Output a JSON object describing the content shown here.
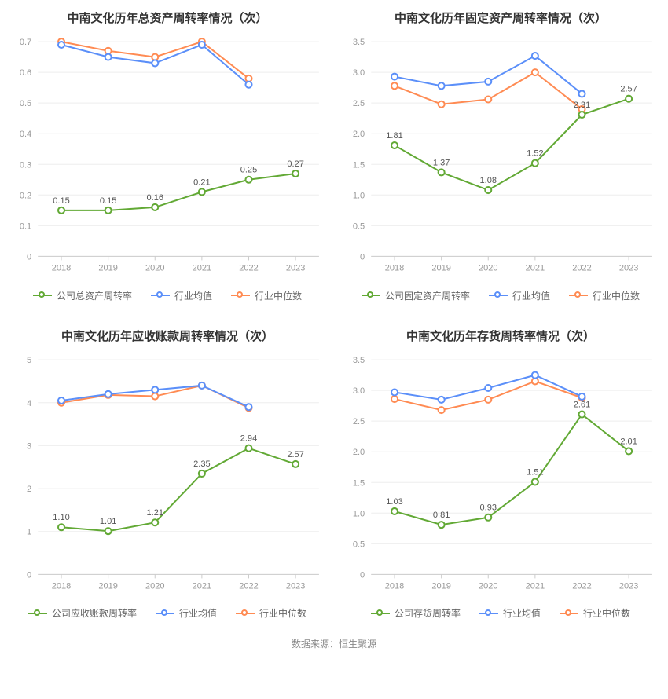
{
  "colors": {
    "company": "#62a935",
    "avg": "#5b8ff9",
    "median": "#ff8b53",
    "grid": "#eeeeee",
    "axis": "#cccccc",
    "axis_text": "#999999",
    "label_text": "#555555",
    "title_text": "#333333",
    "legend_text": "#666666",
    "bg": "#ffffff"
  },
  "x_categories": [
    "2018",
    "2019",
    "2020",
    "2021",
    "2022",
    "2023"
  ],
  "footer_text": "数据来源：恒生聚源",
  "charts": [
    {
      "id": "total_asset",
      "title": "中南文化历年总资产周转率情况（次）",
      "ylim": [
        0,
        0.7
      ],
      "ytick_step": 0.1,
      "y_decimals": 1,
      "legend": [
        "公司总资产周转率",
        "行业均值",
        "行业中位数"
      ],
      "series": {
        "company": {
          "values": [
            0.15,
            0.15,
            0.16,
            0.21,
            0.25,
            0.27
          ],
          "show_labels": true
        },
        "avg": {
          "values": [
            0.69,
            0.65,
            0.63,
            0.69,
            0.56,
            null
          ],
          "show_labels": false
        },
        "median": {
          "values": [
            0.7,
            0.67,
            0.65,
            0.7,
            0.58,
            null
          ],
          "show_labels": false
        }
      }
    },
    {
      "id": "fixed_asset",
      "title": "中南文化历年固定资产周转率情况（次）",
      "ylim": [
        0,
        3.5
      ],
      "ytick_step": 0.5,
      "y_decimals": 1,
      "legend": [
        "公司固定资产周转率",
        "行业均值",
        "行业中位数"
      ],
      "series": {
        "company": {
          "values": [
            1.81,
            1.37,
            1.08,
            1.52,
            2.31,
            2.57
          ],
          "show_labels": true
        },
        "avg": {
          "values": [
            2.93,
            2.78,
            2.85,
            3.27,
            2.65,
            null
          ],
          "show_labels": false
        },
        "median": {
          "values": [
            2.78,
            2.48,
            2.56,
            3.0,
            2.4,
            null
          ],
          "show_labels": false
        }
      }
    },
    {
      "id": "receivables",
      "title": "中南文化历年应收账款周转率情况（次）",
      "ylim": [
        0,
        5
      ],
      "ytick_step": 1,
      "y_decimals": 0,
      "legend": [
        "公司应收账款周转率",
        "行业均值",
        "行业中位数"
      ],
      "series": {
        "company": {
          "values": [
            1.1,
            1.01,
            1.21,
            2.35,
            2.94,
            2.57
          ],
          "show_labels": true
        },
        "avg": {
          "values": [
            4.05,
            4.2,
            4.3,
            4.4,
            3.9,
            null
          ],
          "show_labels": false
        },
        "median": {
          "values": [
            4.0,
            4.18,
            4.15,
            4.4,
            3.88,
            null
          ],
          "show_labels": false
        }
      }
    },
    {
      "id": "inventory",
      "title": "中南文化历年存货周转率情况（次）",
      "ylim": [
        0,
        3.5
      ],
      "ytick_step": 0.5,
      "y_decimals": 1,
      "legend": [
        "公司存货周转率",
        "行业均值",
        "行业中位数"
      ],
      "series": {
        "company": {
          "values": [
            1.03,
            0.81,
            0.93,
            1.51,
            2.61,
            2.01
          ],
          "show_labels": true
        },
        "avg": {
          "values": [
            2.97,
            2.85,
            3.04,
            3.25,
            2.9,
            null
          ],
          "show_labels": false
        },
        "median": {
          "values": [
            2.86,
            2.68,
            2.85,
            3.15,
            2.88,
            null
          ],
          "show_labels": false
        }
      }
    }
  ]
}
